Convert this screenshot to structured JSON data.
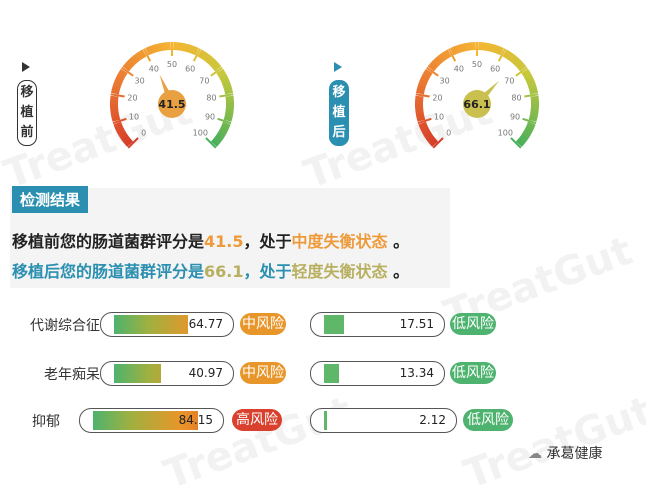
{
  "gauges": [
    {
      "side_label": "移植前",
      "value": 41.5,
      "display": "41.5",
      "ticks": [
        "0",
        "10",
        "20",
        "30",
        "40",
        "50",
        "60",
        "70",
        "80",
        "90",
        "100"
      ],
      "bubble_color": "#e8a040"
    },
    {
      "side_label": "移植后",
      "value": 66.1,
      "display": "66.1",
      "ticks": [
        "0",
        "10",
        "20",
        "30",
        "40",
        "50",
        "60",
        "70",
        "80",
        "90",
        "100"
      ],
      "bubble_color": "#c9c050"
    }
  ],
  "result": {
    "header": "检测结果",
    "line1": {
      "prefix": "移植前您的肠道菌群评分是",
      "score": "41.5",
      "mid": "，处于",
      "state": "中度失衡状态",
      "end": " 。"
    },
    "line2": {
      "prefix": "移植后您的肠道菌群评分是",
      "score": "66.1",
      "mid": "，处于",
      "state": "轻度失衡状态",
      "end": " 。"
    }
  },
  "risks": [
    {
      "name": "代谢综合征",
      "before": {
        "value": 64.77,
        "text": "64.77",
        "risk": "中风险",
        "color": "#e8962a"
      },
      "after": {
        "value": 17.51,
        "text": "17.51",
        "risk": "低风险",
        "color": "#4db36e"
      }
    },
    {
      "name": "老年痴呆",
      "before": {
        "value": 40.97,
        "text": "40.97",
        "risk": "中风险",
        "color": "#e8962a"
      },
      "after": {
        "value": 13.34,
        "text": "13.34",
        "risk": "低风险",
        "color": "#4db36e"
      }
    },
    {
      "name": "抑郁",
      "before": {
        "value": 84.15,
        "text": "84.15",
        "risk": "高风险",
        "color": "#d9412e"
      },
      "after": {
        "value": 2.12,
        "text": "2.12",
        "risk": "低风险",
        "color": "#4db36e"
      }
    }
  ],
  "footer": {
    "brand": "承葛健康",
    "watermark": "TreatGut"
  }
}
